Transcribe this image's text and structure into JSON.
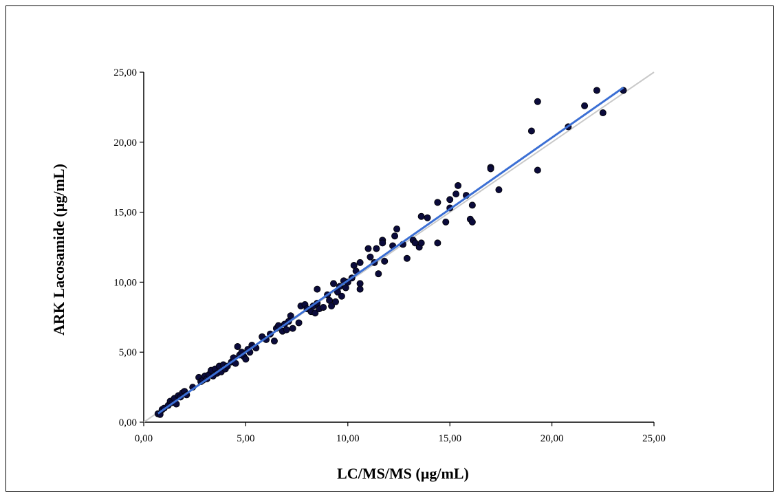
{
  "chart_data": {
    "type": "scatter",
    "xlabel": "LC/MS/MS (µg/mL)",
    "ylabel": "ARK Lacosamide (µg/mL)",
    "xlim": [
      0,
      25
    ],
    "ylim": [
      0,
      25
    ],
    "x_ticks": [
      "0,00",
      "5,00",
      "10,00",
      "15,00",
      "20,00",
      "25,00"
    ],
    "y_ticks": [
      "0,00",
      "5,00",
      "10,00",
      "15,00",
      "20,00",
      "25,00"
    ],
    "grid": false,
    "colors": {
      "points": "#0b0b3b",
      "regression": "#3b6fd4",
      "identity": "#c8c8c8"
    },
    "identity_line": {
      "x": [
        0,
        25
      ],
      "y": [
        0,
        25
      ]
    },
    "regression_line": {
      "x": [
        0.7,
        23.5
      ],
      "y": [
        0.62,
        23.9
      ]
    },
    "points": [
      [
        0.7,
        0.6
      ],
      [
        0.8,
        0.55
      ],
      [
        0.9,
        0.9
      ],
      [
        1.0,
        1.0
      ],
      [
        1.2,
        1.2
      ],
      [
        1.3,
        1.5
      ],
      [
        1.4,
        1.4
      ],
      [
        1.5,
        1.7
      ],
      [
        1.6,
        1.3
      ],
      [
        1.7,
        1.9
      ],
      [
        1.8,
        1.8
      ],
      [
        1.9,
        2.1
      ],
      [
        2.0,
        2.2
      ],
      [
        2.1,
        1.95
      ],
      [
        2.4,
        2.5
      ],
      [
        2.7,
        3.2
      ],
      [
        2.8,
        2.9
      ],
      [
        2.9,
        3.0
      ],
      [
        3.0,
        3.3
      ],
      [
        3.1,
        3.1
      ],
      [
        3.2,
        3.4
      ],
      [
        3.3,
        3.7
      ],
      [
        3.4,
        3.3
      ],
      [
        3.5,
        3.8
      ],
      [
        3.6,
        3.5
      ],
      [
        3.7,
        4.0
      ],
      [
        3.8,
        3.6
      ],
      [
        3.9,
        4.1
      ],
      [
        4.0,
        3.8
      ],
      [
        4.1,
        4.0
      ],
      [
        4.3,
        4.3
      ],
      [
        4.4,
        4.6
      ],
      [
        4.5,
        4.2
      ],
      [
        4.6,
        5.4
      ],
      [
        4.7,
        4.8
      ],
      [
        4.8,
        5.0
      ],
      [
        4.9,
        4.7
      ],
      [
        5.0,
        4.5
      ],
      [
        5.1,
        5.2
      ],
      [
        5.2,
        5.0
      ],
      [
        5.3,
        5.5
      ],
      [
        5.5,
        5.3
      ],
      [
        5.8,
        6.1
      ],
      [
        6.0,
        5.9
      ],
      [
        6.2,
        6.3
      ],
      [
        6.4,
        5.8
      ],
      [
        6.5,
        6.7
      ],
      [
        6.6,
        6.9
      ],
      [
        6.8,
        6.5
      ],
      [
        6.9,
        7.0
      ],
      [
        7.0,
        6.6
      ],
      [
        7.1,
        7.2
      ],
      [
        7.2,
        7.6
      ],
      [
        7.3,
        6.7
      ],
      [
        7.6,
        7.1
      ],
      [
        7.7,
        8.3
      ],
      [
        7.9,
        8.4
      ],
      [
        8.0,
        8.1
      ],
      [
        8.2,
        7.9
      ],
      [
        8.3,
        8.3
      ],
      [
        8.4,
        7.8
      ],
      [
        8.5,
        8.5
      ],
      [
        8.6,
        8.1
      ],
      [
        8.8,
        8.2
      ],
      [
        8.5,
        9.5
      ],
      [
        9.0,
        9.1
      ],
      [
        9.1,
        8.7
      ],
      [
        9.2,
        8.3
      ],
      [
        9.3,
        9.9
      ],
      [
        9.4,
        8.6
      ],
      [
        9.5,
        9.3
      ],
      [
        9.6,
        9.7
      ],
      [
        9.7,
        9.0
      ],
      [
        9.8,
        10.1
      ],
      [
        9.9,
        9.6
      ],
      [
        10.0,
        10.0
      ],
      [
        10.2,
        10.3
      ],
      [
        10.3,
        11.2
      ],
      [
        10.4,
        10.8
      ],
      [
        10.6,
        9.9
      ],
      [
        10.6,
        11.4
      ],
      [
        10.6,
        9.5
      ],
      [
        11.0,
        12.4
      ],
      [
        11.1,
        11.8
      ],
      [
        11.3,
        11.4
      ],
      [
        11.4,
        12.4
      ],
      [
        11.5,
        10.6
      ],
      [
        11.7,
        13.0
      ],
      [
        11.7,
        12.8
      ],
      [
        11.8,
        11.5
      ],
      [
        12.2,
        12.6
      ],
      [
        12.3,
        13.3
      ],
      [
        12.4,
        13.8
      ],
      [
        12.7,
        12.7
      ],
      [
        12.9,
        11.7
      ],
      [
        13.2,
        13.0
      ],
      [
        13.3,
        12.8
      ],
      [
        13.5,
        12.5
      ],
      [
        13.6,
        14.7
      ],
      [
        13.6,
        12.8
      ],
      [
        13.9,
        14.6
      ],
      [
        14.4,
        15.7
      ],
      [
        14.4,
        12.8
      ],
      [
        14.8,
        14.3
      ],
      [
        15.0,
        15.9
      ],
      [
        15.0,
        15.3
      ],
      [
        15.3,
        16.3
      ],
      [
        15.4,
        16.9
      ],
      [
        15.8,
        16.2
      ],
      [
        16.0,
        14.5
      ],
      [
        16.1,
        15.5
      ],
      [
        16.1,
        14.3
      ],
      [
        17.0,
        18.2
      ],
      [
        17.0,
        18.1
      ],
      [
        17.4,
        16.6
      ],
      [
        19.0,
        20.8
      ],
      [
        19.3,
        22.9
      ],
      [
        19.3,
        18.0
      ],
      [
        20.8,
        21.1
      ],
      [
        21.6,
        22.6
      ],
      [
        22.2,
        23.7
      ],
      [
        22.5,
        22.1
      ],
      [
        23.5,
        23.7
      ]
    ]
  }
}
